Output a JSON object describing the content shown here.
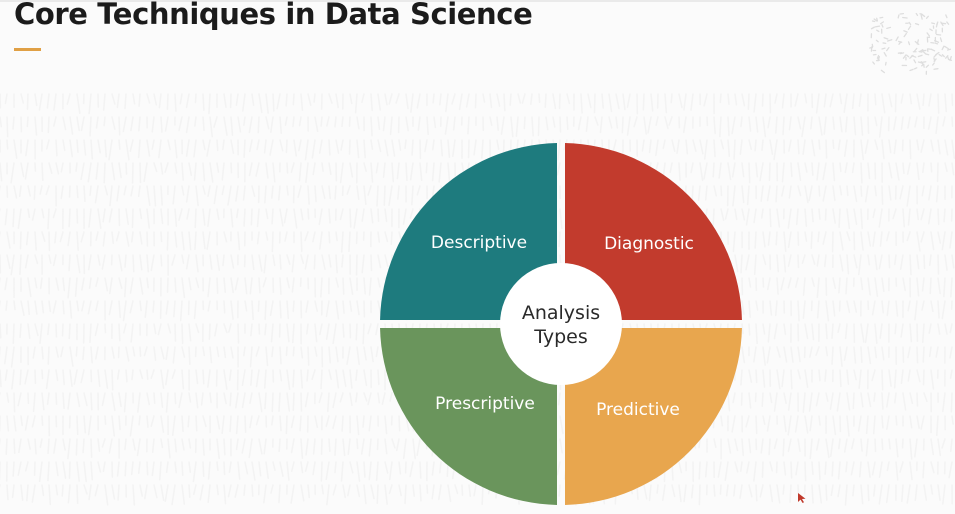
{
  "slide": {
    "title": "Core Techniques in Data Science"
  },
  "diagram": {
    "center_label_lines": [
      "Analysis",
      "Types"
    ],
    "segments": [
      {
        "label": "Descriptive",
        "color": "#1e7b7e"
      },
      {
        "label": "Diagnostic",
        "color": "#c23b2d"
      },
      {
        "label": "Predictive",
        "color": "#e8a64e"
      },
      {
        "label": "Prescriptive",
        "color": "#6a955c"
      }
    ]
  },
  "colors": {
    "title_text": "#1b1b1b",
    "accent": "#e0a045",
    "background": "#fbfbfb",
    "pattern": "#eeeeee",
    "pointer": "#c0392b"
  }
}
